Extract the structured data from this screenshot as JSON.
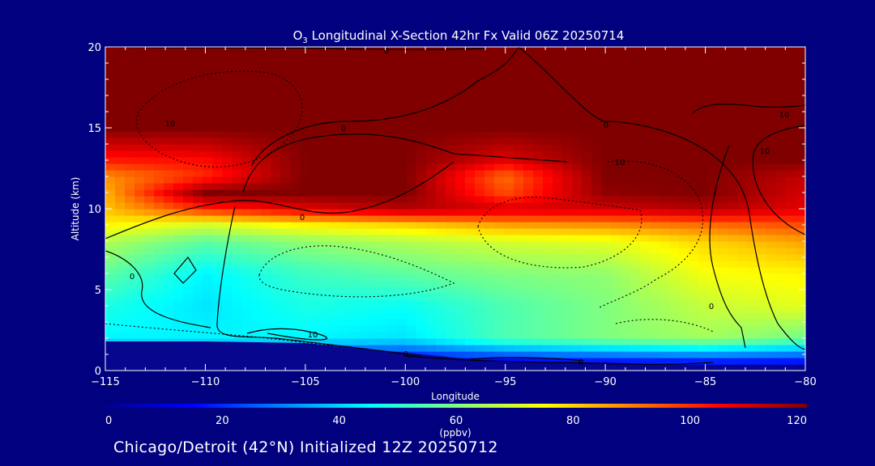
{
  "caption": "Chicago/Detroit (42°N) Initialized 12Z 20250712",
  "chart_data": {
    "type": "heatmap",
    "title_species": "O",
    "title_subscript": "3",
    "title_rest": " Longitudinal X-Section 42hr  Fx Valid 06Z 20250714",
    "xlabel": "Longitude",
    "ylabel": "Altitude (km)",
    "xlim": [
      -115,
      -80
    ],
    "ylim": [
      0,
      20
    ],
    "xticks": [
      -115,
      -110,
      -105,
      -100,
      -95,
      -90,
      -85,
      -80
    ],
    "xtick_labels": [
      "−115",
      "−110",
      "−105",
      "−100",
      "−95",
      "−90",
      "−85",
      "−80"
    ],
    "yticks": [
      0,
      5,
      10,
      15,
      20
    ],
    "ytick_labels": [
      "0",
      "5",
      "10",
      "15",
      "20"
    ],
    "colorbar": {
      "label": "(ppbv)",
      "min": 0,
      "max": 120,
      "ticks": [
        0,
        20,
        40,
        60,
        80,
        100,
        120
      ],
      "tick_labels": [
        "0",
        "20",
        "40",
        "60",
        "80",
        "100",
        "120"
      ]
    },
    "field": {
      "x": [
        -115,
        -110,
        -105,
        -100,
        -95,
        -90,
        -85,
        -80
      ],
      "y": [
        0,
        2,
        4,
        6,
        8,
        9,
        10,
        11,
        12,
        13,
        15,
        20
      ],
      "ozone_ppbv": [
        [
          0,
          0,
          0,
          0,
          0,
          0,
          0,
          0
        ],
        [
          44,
          44,
          44,
          42,
          54,
          60,
          64,
          58
        ],
        [
          48,
          42,
          48,
          46,
          54,
          60,
          68,
          72
        ],
        [
          56,
          44,
          52,
          56,
          60,
          62,
          74,
          76
        ],
        [
          66,
          56,
          62,
          66,
          70,
          72,
          80,
          86
        ],
        [
          76,
          70,
          76,
          80,
          86,
          88,
          92,
          96
        ],
        [
          82,
          100,
          108,
          114,
          110,
          110,
          114,
          108
        ],
        [
          84,
          120,
          120,
          120,
          96,
          118,
          120,
          110
        ],
        [
          88,
          100,
          120,
          120,
          92,
          120,
          120,
          112
        ],
        [
          102,
          104,
          120,
          120,
          108,
          120,
          120,
          120
        ],
        [
          120,
          120,
          120,
          120,
          120,
          120,
          120,
          120
        ],
        [
          120,
          120,
          120,
          120,
          120,
          120,
          120,
          120
        ]
      ],
      "surface_height_km": [
        1.8,
        1.8,
        1.7,
        1.1,
        0.5,
        0.5,
        0.3,
        0.3
      ]
    },
    "contour_labels": [
      "0",
      "0",
      "0",
      "0",
      "0",
      "0",
      "0",
      "0",
      "10",
      "10",
      "10",
      "10",
      "10"
    ]
  }
}
